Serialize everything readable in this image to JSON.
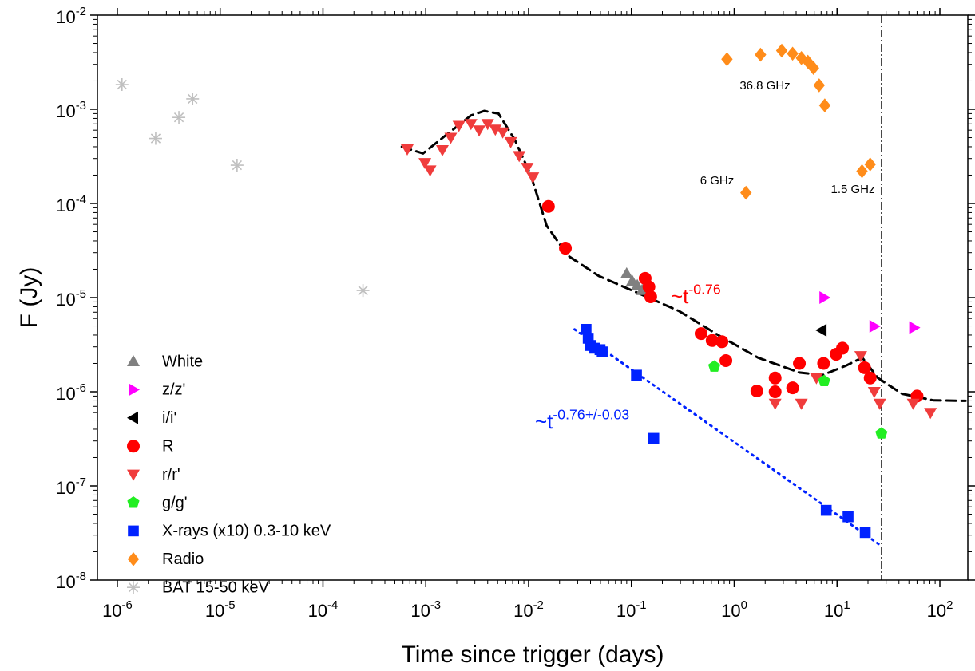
{
  "chart_data": {
    "type": "scatter",
    "x_label": "Time since trigger (days)",
    "y_label": "F (Jy)",
    "log_x": true,
    "log_y": true,
    "xlim": [
      6.4e-07,
      187
    ],
    "ylim": [
      1e-08,
      0.01
    ],
    "xticks": [
      {
        "value": 1e-06,
        "label": "10^-6"
      },
      {
        "value": 1e-05,
        "label": "10^-5"
      },
      {
        "value": 0.0001,
        "label": "10^-4"
      },
      {
        "value": 0.001,
        "label": "10^-3"
      },
      {
        "value": 0.01,
        "label": "10^-2"
      },
      {
        "value": 0.1,
        "label": "10^-1"
      },
      {
        "value": 1,
        "label": "10^0"
      },
      {
        "value": 10,
        "label": "10^1"
      },
      {
        "value": 100,
        "label": "10^2"
      }
    ],
    "yticks": [
      {
        "value": 1e-08,
        "label": "10^-8"
      },
      {
        "value": 1e-07,
        "label": "10^-7"
      },
      {
        "value": 1e-06,
        "label": "10^-6"
      },
      {
        "value": 1e-05,
        "label": "10^-5"
      },
      {
        "value": 0.0001,
        "label": "10^-4"
      },
      {
        "value": 0.001,
        "label": "10^-3"
      },
      {
        "value": 0.01,
        "label": "10^-2"
      }
    ],
    "legend_position": "lower left",
    "series": [
      {
        "name": "White",
        "color": "#808080",
        "marker": "triangle-up",
        "x": [
          0.09,
          0.102,
          0.114,
          0.127
        ],
        "values": [
          1.8e-05,
          1.5e-05,
          1.35e-05,
          1.2e-05
        ]
      },
      {
        "name": "z/z'",
        "color": "#ff00ff",
        "marker": "triangle-right",
        "x": [
          7.5,
          23,
          56
        ],
        "values": [
          1e-05,
          4.95e-06,
          4.8e-06
        ]
      },
      {
        "name": "i/i'",
        "color": "#000000",
        "marker": "triangle-left",
        "x": [
          7.1
        ],
        "values": [
          4.5e-06
        ]
      },
      {
        "name": "R",
        "color": "#ff0000",
        "marker": "circle",
        "x": [
          0.0156,
          0.0228,
          0.136,
          0.148,
          0.154,
          0.476,
          0.61,
          0.76,
          0.83,
          1.66,
          2.5,
          2.5,
          3.7,
          4.3,
          7.4,
          9.8,
          11.3,
          18.5,
          21,
          60
        ],
        "values": [
          9.3e-05,
          3.35e-05,
          1.6e-05,
          1.3e-05,
          1.02e-05,
          4.15e-06,
          3.5e-06,
          3.4e-06,
          2.14e-06,
          1.02e-06,
          1.4e-06,
          1e-06,
          1.1e-06,
          2e-06,
          2e-06,
          2.5e-06,
          2.9e-06,
          1.8e-06,
          1.4e-06,
          9e-07
        ]
      },
      {
        "name": "r/r'",
        "color": "#f03c3c",
        "marker": "triangle-down",
        "x": [
          0.00066,
          0.00098,
          0.0011,
          0.00145,
          0.00175,
          0.0021,
          0.00275,
          0.0033,
          0.004,
          0.00475,
          0.0056,
          0.0067,
          0.0081,
          0.0097,
          0.011,
          2.5,
          4.5,
          6.3,
          17,
          23,
          26,
          55,
          81
        ],
        "values": [
          0.000377,
          0.00027,
          0.000225,
          0.00037,
          0.0005,
          0.00067,
          0.0007,
          0.0006,
          0.0007,
          0.00061,
          0.00057,
          0.00045,
          0.00032,
          0.00024,
          0.00019,
          7.5e-07,
          7.5e-07,
          1.4e-06,
          2.4e-06,
          1e-06,
          7.5e-07,
          7.5e-07,
          6e-07
        ]
      },
      {
        "name": "g/g'",
        "color": "#22ee22",
        "marker": "pentagon",
        "x": [
          0.64,
          7.5,
          27
        ],
        "values": [
          1.85e-06,
          1.3e-06,
          3.6e-07
        ]
      },
      {
        "name": "X-rays (x10) 0.3-10 keV",
        "color": "#0022ff",
        "marker": "square",
        "x": [
          0.0362,
          0.038,
          0.04,
          0.044,
          0.0495,
          0.052,
          0.112,
          0.165,
          7.85,
          12.8,
          18.8
        ],
        "values": [
          4.6e-06,
          3.7e-06,
          3.1e-06,
          2.9e-06,
          2.8e-06,
          2.65e-06,
          1.5e-06,
          3.2e-07,
          5.5e-08,
          4.7e-08,
          3.2e-08
        ]
      },
      {
        "name": "Radio",
        "color": "#ff8c1a",
        "marker": "diamond",
        "x": [
          0.85,
          1.8,
          2.9,
          3.7,
          4.5,
          5.2,
          5.9,
          6.7,
          7.6,
          1.3,
          17.5,
          21
        ],
        "values": [
          0.0034,
          0.0038,
          0.0042,
          0.0039,
          0.0035,
          0.0032,
          0.00275,
          0.0018,
          0.0011,
          0.00013,
          0.00022,
          0.00026
        ]
      },
      {
        "name": "BAT 15-50 keV",
        "color": "#c0c0c0",
        "marker": "asterisk",
        "x": [
          1.11e-06,
          2.36e-06,
          3.97e-06,
          5.4e-06,
          1.46e-05,
          0.000245
        ],
        "values": [
          0.00183,
          0.00049,
          0.00082,
          0.00129,
          0.000255,
          1.19e-05
        ]
      }
    ],
    "lines": [
      {
        "color": "#000000",
        "style": "dashed",
        "x": [
          0.000585,
          0.00094,
          0.0016,
          0.00275,
          0.0037,
          0.0051,
          0.0073,
          0.0105,
          0.015,
          0.024,
          0.048,
          0.12,
          0.29,
          0.7,
          1.7,
          4.3,
          7.2,
          12.3,
          17.6,
          25,
          43,
          87,
          178
        ],
        "values": [
          0.0004,
          0.00034,
          0.00054,
          0.00086,
          0.00096,
          0.0009,
          0.00048,
          0.0002,
          5.8e-05,
          2.8e-05,
          1.7e-05,
          1.1e-05,
          7.2e-06,
          4e-06,
          2.3e-06,
          1.6e-06,
          1.5e-06,
          1.9e-06,
          2.3e-06,
          1.4e-06,
          9.5e-07,
          8.1e-07,
          8e-07
        ]
      },
      {
        "color": "#0022ff",
        "style": "dotted",
        "x": [
          0.028,
          27
        ],
        "values": [
          4.6e-06,
          2.3e-08
        ]
      }
    ],
    "vertical_line_x": 27,
    "annotations": [
      {
        "text": "~t^-0.76",
        "color": "#ff0000"
      },
      {
        "text": "~t^-0.76+/-0.03",
        "color": "#0022ff"
      },
      {
        "text": "36.8 GHz",
        "color": "#000000"
      },
      {
        "text": "6 GHz",
        "color": "#000000"
      },
      {
        "text": "1.5 GHz",
        "color": "#000000"
      }
    ]
  }
}
